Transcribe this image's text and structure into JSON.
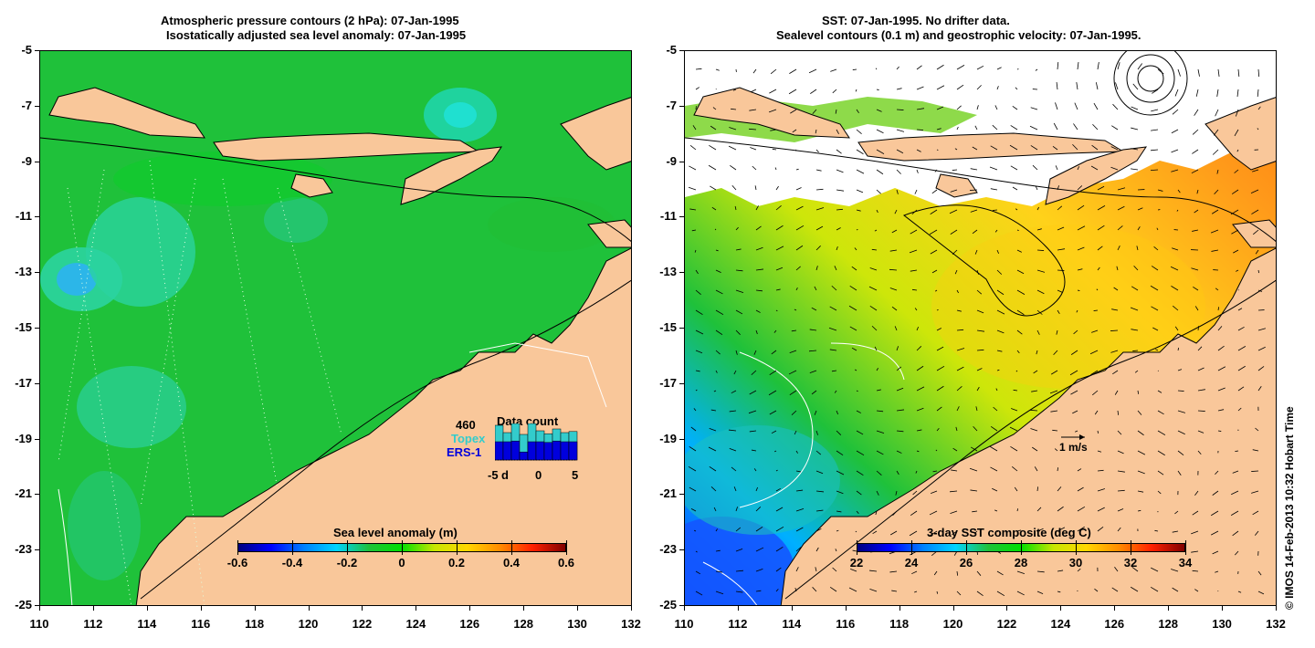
{
  "left_panel": {
    "title_line1": "Atmospheric pressure contours (2 hPa): 07-Jan-1995",
    "title_line2": "Isostatically adjusted sea level anomaly: 07-Jan-1995",
    "colorbar_label": "Sea level anomaly (m)",
    "colorbar_ticks": [
      "-0.6",
      "-0.4",
      "-0.2",
      "0",
      "0.2",
      "0.4",
      "0.6"
    ],
    "inset": {
      "count": "460",
      "title": "Data count",
      "topex_label": "Topex",
      "ers_label": "ERS-1",
      "axis_labels": [
        "-5",
        "d",
        "0",
        "5"
      ],
      "topex_color": "#33cccc",
      "ers_color": "#0000dd",
      "topex_bars": [
        0.95,
        0.75,
        1.0,
        0.7,
        1.0,
        0.8,
        0.72,
        0.85,
        0.75,
        0.78
      ],
      "ers_bars": [
        0.5,
        0.5,
        0.52,
        0.22,
        0.5,
        0.5,
        0.48,
        0.52,
        0.5,
        0.5
      ]
    }
  },
  "right_panel": {
    "title_line1": "SST: 07-Jan-1995. No drifter data.",
    "title_line2": "Sealevel contours (0.1 m) and geostrophic velocity: 07-Jan-1995.",
    "colorbar_label": "3-day SST composite (deg C)",
    "colorbar_ticks": [
      "22",
      "24",
      "26",
      "28",
      "30",
      "32",
      "34"
    ],
    "velocity_scale_label": "1 m/s"
  },
  "axes": {
    "y_ticks": [
      "-5",
      "-7",
      "-9",
      "-11",
      "-13",
      "-15",
      "-17",
      "-19",
      "-21",
      "-23",
      "-25"
    ],
    "x_ticks": [
      "110",
      "112",
      "114",
      "116",
      "118",
      "120",
      "122",
      "124",
      "126",
      "128",
      "130",
      "132"
    ],
    "lon_range": [
      110,
      132
    ],
    "lat_range": [
      -25,
      -5
    ]
  },
  "credit": "© IMOS 14-Feb-2013 10:32 Hobart Time",
  "colors": {
    "land": "#f9c79a",
    "ocean_sla": "#1fc13a",
    "ocean_sst": "#e9e60a"
  }
}
